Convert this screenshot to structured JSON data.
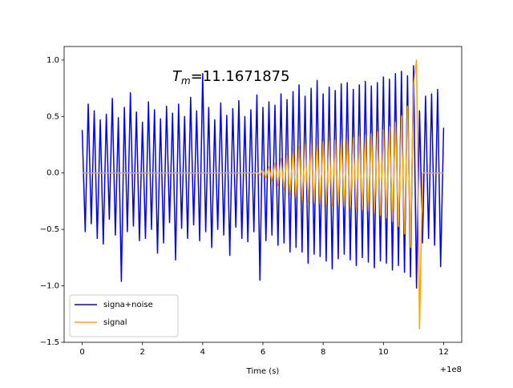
{
  "chart_data": {
    "type": "line",
    "annotation": {
      "symbol": "T",
      "subscript": "m",
      "text": "=11.1671875"
    },
    "x_label": "Time (s)",
    "x_offset_label": "+1e8",
    "x": [
      0,
      0.1,
      0.2,
      0.3,
      0.4,
      0.5,
      0.6,
      0.7,
      0.8,
      0.9,
      1,
      1.1,
      1.2,
      1.3,
      1.4,
      1.5,
      1.6,
      1.7,
      1.8,
      1.9,
      2,
      2.1,
      2.2,
      2.3,
      2.4,
      2.5,
      2.6,
      2.7,
      2.8,
      2.9,
      3,
      3.1,
      3.2,
      3.3,
      3.4,
      3.5,
      3.6,
      3.7,
      3.8,
      3.9,
      4,
      4.1,
      4.2,
      4.3,
      4.4,
      4.5,
      4.6,
      4.7,
      4.8,
      4.9,
      5,
      5.1,
      5.2,
      5.3,
      5.4,
      5.5,
      5.6,
      5.7,
      5.8,
      5.9,
      6,
      6.1,
      6.2,
      6.3,
      6.4,
      6.5,
      6.6,
      6.7,
      6.8,
      6.9,
      7,
      7.1,
      7.2,
      7.3,
      7.4,
      7.5,
      7.6,
      7.7,
      7.8,
      7.9,
      8,
      8.1,
      8.2,
      8.3,
      8.4,
      8.5,
      8.6,
      8.7,
      8.8,
      8.9,
      9,
      9.1,
      9.2,
      9.3,
      9.4,
      9.5,
      9.6,
      9.7,
      9.8,
      9.9,
      10,
      10.1,
      10.2,
      10.3,
      10.4,
      10.5,
      10.6,
      10.7,
      10.8,
      10.9,
      11,
      11.1,
      11.2,
      11.3,
      11.4,
      11.5,
      11.6,
      11.7,
      11.8,
      11.9,
      12
    ],
    "series": [
      {
        "name": "signa+noise",
        "color": "#0000ff",
        "values": [
          0.38,
          -0.52,
          0.61,
          -0.45,
          0.55,
          -0.58,
          0.47,
          -0.63,
          0.52,
          -0.41,
          0.66,
          -0.55,
          0.49,
          -0.96,
          0.58,
          -0.52,
          0.71,
          -0.47,
          0.54,
          -0.6,
          0.45,
          -0.58,
          0.63,
          -0.5,
          0.56,
          -0.71,
          0.48,
          -0.62,
          0.59,
          -0.44,
          0.53,
          -0.77,
          0.61,
          -0.49,
          0.5,
          -0.58,
          0.67,
          -0.46,
          0.55,
          -0.6,
          0.88,
          -0.52,
          0.58,
          -0.66,
          0.47,
          -0.5,
          0.62,
          -0.55,
          0.51,
          -0.73,
          0.57,
          -0.48,
          0.64,
          -0.58,
          0.5,
          -0.61,
          0.56,
          -0.52,
          0.69,
          -0.95,
          0.58,
          -0.6,
          0.63,
          -0.55,
          0.6,
          -0.64,
          0.7,
          -0.62,
          0.65,
          -0.7,
          0.72,
          -0.66,
          0.78,
          -0.7,
          0.68,
          -0.8,
          0.75,
          -0.72,
          0.82,
          -0.74,
          0.7,
          -0.78,
          0.76,
          -0.85,
          0.73,
          -0.76,
          0.79,
          -0.72,
          0.8,
          -0.77,
          0.74,
          -0.82,
          0.78,
          -0.75,
          0.81,
          -0.79,
          0.77,
          -0.84,
          0.8,
          -0.78,
          0.85,
          -0.8,
          0.83,
          -0.86,
          0.88,
          -0.82,
          0.9,
          -0.88,
          0.86,
          -0.92,
          0.95,
          -1.02,
          0.55,
          -0.62,
          0.68,
          -0.58,
          0.7,
          -0.64,
          0.74,
          -0.83,
          0.4
        ]
      },
      {
        "name": "signal",
        "color": "#ffa500",
        "values": [
          0,
          0,
          0,
          0,
          0,
          0,
          0,
          0,
          0,
          0,
          0,
          0,
          0,
          0,
          0,
          0,
          0,
          0,
          0,
          0,
          0,
          0,
          0,
          0,
          0,
          0,
          0,
          0,
          0,
          0,
          0,
          0,
          0,
          0,
          0,
          0,
          0,
          0,
          0,
          0,
          0,
          0,
          0,
          0,
          0,
          0,
          0,
          0,
          0,
          0,
          0,
          0,
          0,
          0,
          0,
          0,
          0.005,
          -0.008,
          0.012,
          -0.02,
          0.03,
          -0.04,
          0.055,
          -0.07,
          0.09,
          -0.11,
          0.13,
          -0.15,
          0.17,
          -0.19,
          0.21,
          -0.22,
          0.235,
          -0.245,
          0.255,
          -0.26,
          0.265,
          -0.27,
          0.275,
          -0.278,
          0.28,
          -0.283,
          0.286,
          -0.289,
          0.292,
          -0.295,
          0.298,
          -0.302,
          0.306,
          -0.31,
          0.314,
          -0.318,
          0.323,
          -0.328,
          0.334,
          -0.34,
          0.347,
          -0.355,
          0.364,
          -0.374,
          0.385,
          -0.398,
          0.412,
          -0.43,
          0.45,
          -0.475,
          0.505,
          -0.54,
          0.59,
          -0.66,
          0.78,
          1.0,
          -1.38,
          0,
          0,
          0,
          0,
          0,
          0,
          0,
          0
        ]
      }
    ],
    "xlim": [
      -0.6,
      12.6
    ],
    "ylim": [
      -1.5,
      1.12
    ],
    "xticks": [
      0,
      2,
      4,
      6,
      8,
      10,
      12
    ],
    "yticks": [
      {
        "value": -1.5,
        "label": "−1.5"
      },
      {
        "value": -1,
        "label": "−1.0"
      },
      {
        "value": -0.5,
        "label": "−0.5"
      },
      {
        "value": 0,
        "label": "0.0"
      },
      0.5,
      {
        "value": 1,
        "label": "1.0"
      }
    ],
    "legend": "lower left"
  }
}
